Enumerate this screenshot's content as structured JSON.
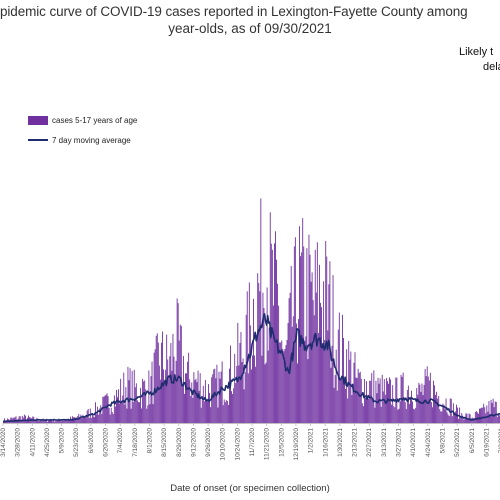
{
  "title_line1": "pidemic curve of COVID-19 cases reported in Lexington-Fayette County among",
  "title_line2": "year-olds, as of 09/30/2021",
  "note_line1": "Likely t",
  "note_line2": "dela",
  "colors": {
    "bar": "#7030a0",
    "line": "#1f2d6e",
    "axis": "#bfbfbf"
  },
  "chart_data": {
    "type": "bar",
    "title": "pidemic curve of COVID-19 cases reported in Lexington-Fayette County among year-olds, as of 09/30/2021",
    "xlabel": "Date of onset (or specimen collection)",
    "ylabel": "",
    "legend_position": "top-left",
    "x_range": [
      "3/14/2020",
      "7/2/2021"
    ],
    "series": [
      {
        "name": "cases 5-17 years of age",
        "kind": "bar",
        "points": [
          [
            "3/14/2020",
            1
          ],
          [
            "4/1/2020",
            2
          ],
          [
            "4/20/2020",
            1
          ],
          [
            "5/10/2020",
            1
          ],
          [
            "5/25/2020",
            2
          ],
          [
            "6/8/2020",
            4
          ],
          [
            "6/22/2020",
            7
          ],
          [
            "7/1/2020",
            9
          ],
          [
            "7/10/2020",
            13
          ],
          [
            "7/20/2020",
            11
          ],
          [
            "8/1/2020",
            12
          ],
          [
            "8/10/2020",
            22
          ],
          [
            "8/20/2020",
            20
          ],
          [
            "8/26/2020",
            28
          ],
          [
            "9/5/2020",
            16
          ],
          [
            "9/15/2020",
            14
          ],
          [
            "9/25/2020",
            11
          ],
          [
            "10/5/2020",
            13
          ],
          [
            "10/15/2020",
            16
          ],
          [
            "10/25/2020",
            22
          ],
          [
            "11/1/2020",
            27
          ],
          [
            "11/8/2020",
            38
          ],
          [
            "11/15/2020",
            48
          ],
          [
            "11/20/2020",
            54
          ],
          [
            "11/25/2020",
            46
          ],
          [
            "12/1/2020",
            40
          ],
          [
            "12/8/2020",
            20
          ],
          [
            "12/15/2020",
            36
          ],
          [
            "12/22/2020",
            46
          ],
          [
            "12/29/2020",
            44
          ],
          [
            "1/5/2021",
            40
          ],
          [
            "1/12/2021",
            46
          ],
          [
            "1/20/2021",
            38
          ],
          [
            "1/28/2021",
            26
          ],
          [
            "2/5/2021",
            22
          ],
          [
            "2/15/2021",
            14
          ],
          [
            "2/25/2021",
            13
          ],
          [
            "3/10/2021",
            11
          ],
          [
            "3/25/2021",
            10
          ],
          [
            "4/5/2021",
            12
          ],
          [
            "4/15/2021",
            10
          ],
          [
            "4/25/2021",
            13
          ],
          [
            "5/5/2021",
            9
          ],
          [
            "5/15/2021",
            6
          ],
          [
            "5/25/2021",
            3
          ],
          [
            "6/5/2021",
            2
          ],
          [
            "6/15/2021",
            4
          ],
          [
            "6/25/2021",
            6
          ],
          [
            "7/2/2021",
            4
          ]
        ]
      },
      {
        "name": "7 day moving average",
        "kind": "line",
        "points": [
          [
            "3/14/2020",
            0.5
          ],
          [
            "4/15/2020",
            1
          ],
          [
            "5/20/2020",
            1
          ],
          [
            "6/10/2020",
            3
          ],
          [
            "6/25/2020",
            6
          ],
          [
            "7/5/2020",
            7
          ],
          [
            "7/20/2020",
            8
          ],
          [
            "8/5/2020",
            10
          ],
          [
            "8/20/2020",
            14
          ],
          [
            "8/30/2020",
            14
          ],
          [
            "9/10/2020",
            10
          ],
          [
            "9/25/2020",
            7
          ],
          [
            "10/10/2020",
            11
          ],
          [
            "10/25/2020",
            14
          ],
          [
            "11/5/2020",
            22
          ],
          [
            "11/12/2020",
            29
          ],
          [
            "11/20/2020",
            33
          ],
          [
            "11/27/2020",
            27
          ],
          [
            "12/5/2020",
            22
          ],
          [
            "12/12/2020",
            16
          ],
          [
            "12/20/2020",
            28
          ],
          [
            "12/28/2020",
            25
          ],
          [
            "1/8/2021",
            27
          ],
          [
            "1/18/2021",
            25
          ],
          [
            "1/28/2021",
            16
          ],
          [
            "2/8/2021",
            12
          ],
          [
            "2/20/2021",
            9
          ],
          [
            "3/5/2021",
            7
          ],
          [
            "3/20/2021",
            7
          ],
          [
            "4/1/2021",
            8
          ],
          [
            "4/15/2021",
            7
          ],
          [
            "4/28/2021",
            7
          ],
          [
            "5/10/2021",
            5
          ],
          [
            "5/25/2021",
            2
          ],
          [
            "6/5/2021",
            1
          ],
          [
            "6/20/2021",
            2
          ],
          [
            "7/2/2021",
            3
          ]
        ]
      }
    ],
    "x_tick_labels": [
      "3/14/2020",
      "3/28/2020",
      "4/11/2020",
      "4/25/2020",
      "5/9/2020",
      "5/23/2020",
      "6/6/2020",
      "6/20/2020",
      "7/4/2020",
      "7/18/2020",
      "8/1/2020",
      "8/15/2020",
      "8/29/2020",
      "9/12/2020",
      "9/26/2020",
      "10/10/2020",
      "10/24/2020",
      "11/7/2020",
      "11/21/2020",
      "12/5/2020",
      "12/19/2020",
      "1/2/2021",
      "1/16/2021",
      "1/30/2021",
      "2/13/2021",
      "2/27/2021",
      "3/13/2021",
      "3/27/2021",
      "4/10/2021",
      "4/24/2021",
      "5/8/2021",
      "5/22/2021",
      "6/5/2021",
      "6/19/2021",
      "7/3/2021"
    ],
    "ylim": [
      0,
      60
    ],
    "grid": false
  }
}
